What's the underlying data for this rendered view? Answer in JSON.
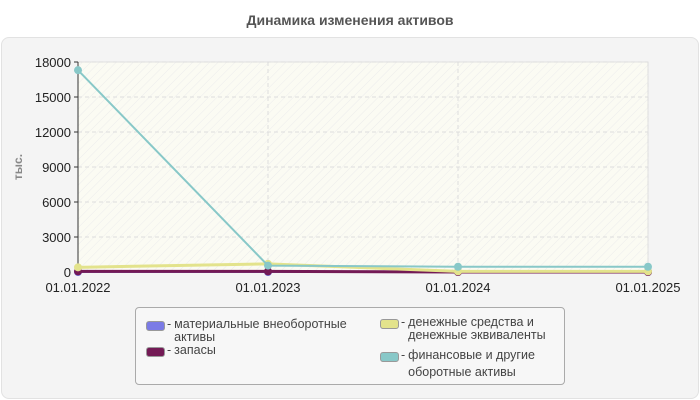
{
  "title": "Динамика изменения активов",
  "colors": {
    "tangible": "#7b7be6",
    "inventory": "#731a55",
    "cash": "#e3e38c",
    "financial": "#88c8c8"
  },
  "legend": [
    {
      "label": "материальные внеоборотные активы",
      "color": "#7b7be6"
    },
    {
      "label": "запасы",
      "color": "#731a55"
    },
    {
      "label": "денежные средства и денежные эквиваленты",
      "color": "#e3e38c"
    },
    {
      "label": "финансовые и другие оборотные активы",
      "color": "#88c8c8"
    }
  ],
  "chart_data": {
    "type": "line",
    "title": "Динамика изменения активов",
    "xlabel": "",
    "ylabel": "тыс.",
    "categories": [
      "01.01.2022",
      "01.01.2023",
      "01.01.2024",
      "01.01.2025"
    ],
    "y_ticks": [
      0,
      3000,
      6000,
      9000,
      12000,
      15000,
      18000
    ],
    "ylim": [
      0,
      18000
    ],
    "grid": true,
    "legend_position": "bottom",
    "series": [
      {
        "name": "материальные внеоборотные активы",
        "values": [
          0,
          0,
          0,
          0
        ]
      },
      {
        "name": "запасы",
        "values": [
          50,
          50,
          0,
          0
        ]
      },
      {
        "name": "денежные средства и денежные эквиваленты",
        "values": [
          400,
          700,
          50,
          50
        ]
      },
      {
        "name": "финансовые и другие оборотные активы",
        "values": [
          17300,
          550,
          450,
          450
        ]
      }
    ]
  }
}
